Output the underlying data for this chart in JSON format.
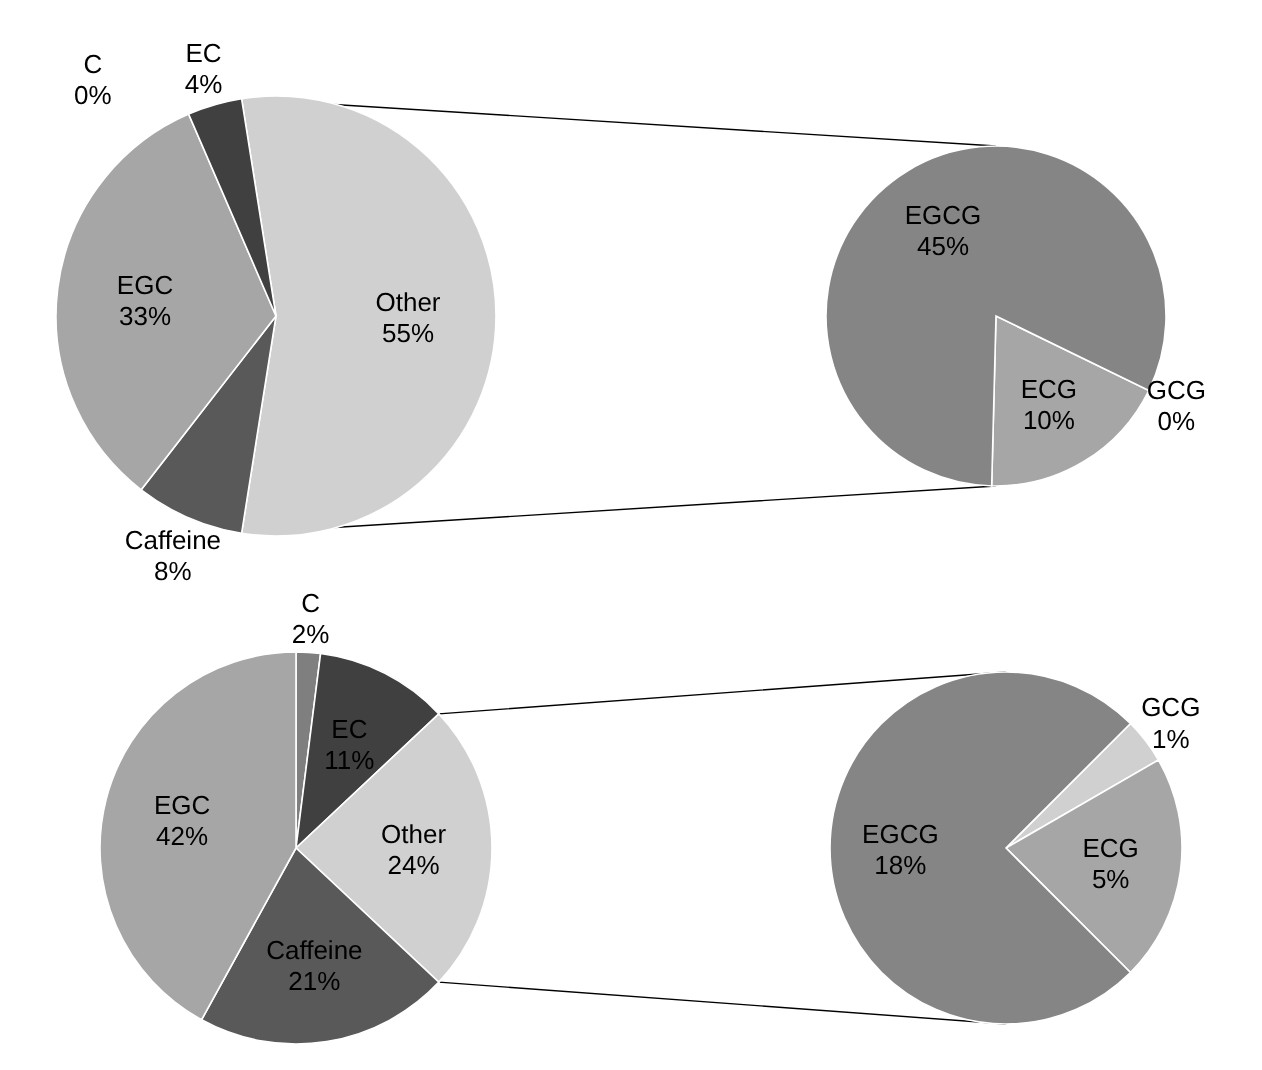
{
  "chart_data": [
    {
      "type": "pie",
      "categories": [
        "Other",
        "Caffeine",
        "EGC",
        "C",
        "EC"
      ],
      "values": [
        55,
        8,
        33,
        0,
        4
      ],
      "colors": [
        "#d0d0d0",
        "#595959",
        "#a6a6a6",
        "#7f7f7f",
        "#404040"
      ],
      "value_labels": [
        "55%",
        "8%",
        "33%",
        "0%",
        "4%"
      ]
    },
    {
      "type": "pie",
      "categories": [
        "GCG",
        "ECG",
        "EGCG"
      ],
      "values": [
        0,
        10,
        45
      ],
      "colors": [
        "#d0d0d0",
        "#a6a6a6",
        "#858585"
      ],
      "value_labels": [
        "0%",
        "10%",
        "45%"
      ]
    },
    {
      "type": "pie",
      "categories": [
        "C",
        "EC",
        "Other",
        "Caffeine",
        "EGC"
      ],
      "values": [
        2,
        11,
        24,
        21,
        42
      ],
      "colors": [
        "#7f7f7f",
        "#404040",
        "#d0d0d0",
        "#595959",
        "#a6a6a6"
      ],
      "value_labels": [
        "2%",
        "11%",
        "24%",
        "21%",
        "42%"
      ]
    },
    {
      "type": "pie",
      "categories": [
        "GCG",
        "ECG",
        "EGCG"
      ],
      "values": [
        1,
        5,
        18
      ],
      "colors": [
        "#d0d0d0",
        "#a6a6a6",
        "#858585"
      ],
      "value_labels": [
        "1%",
        "5%",
        "18%"
      ]
    }
  ]
}
